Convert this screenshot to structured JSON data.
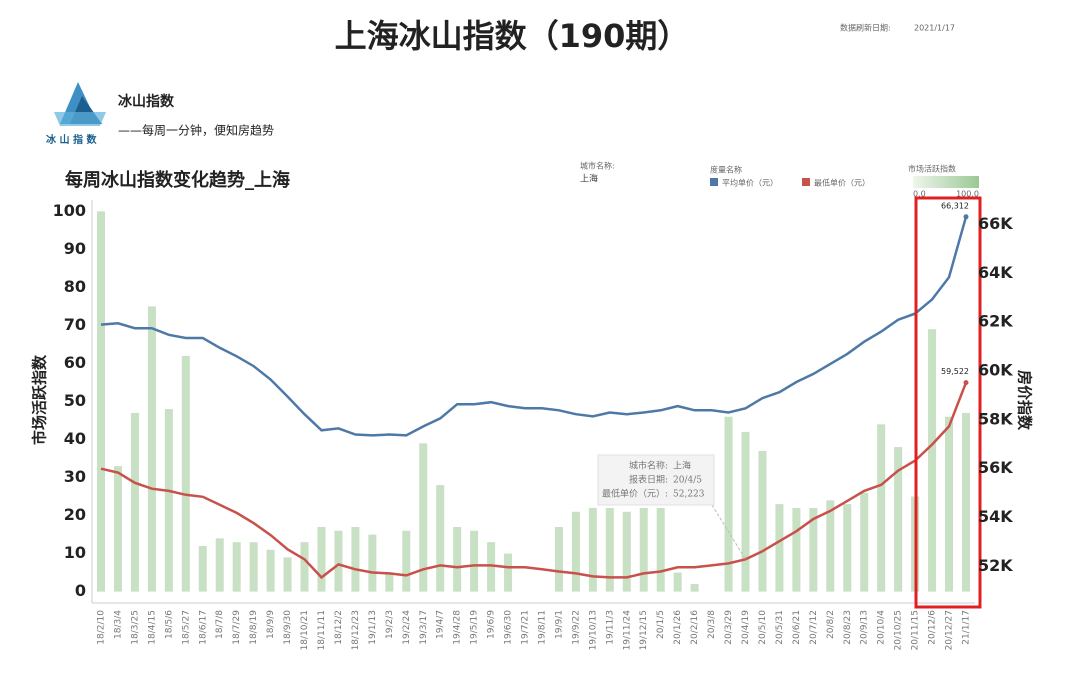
{
  "header": {
    "title": "上海冰山指数（190期）",
    "refresh_label": "数据刷新日期:",
    "refresh_date": "2021/1/17"
  },
  "brand": {
    "name": "冰山指数",
    "slogan": "——每周一分钟，便知房趋势",
    "logo_text": "冰 山 指 数"
  },
  "chart_data": {
    "type": "bar",
    "title": "每周冰山指数变化趋势_上海",
    "filter_label": "城市名称:",
    "filter_value": "上海",
    "measure_label": "度量名称",
    "color_scale": [
      {
        "value": 0,
        "label": "0.0"
      },
      {
        "value": 100,
        "label": "100.0"
      }
    ],
    "ylabel": "市场活跃指数",
    "y2label": "房价指数",
    "categories": [
      "18/2/10",
      "18/3/4",
      "18/3/25",
      "18/4/15",
      "18/5/6",
      "18/5/27",
      "18/6/17",
      "18/7/8",
      "18/7/29",
      "18/8/19",
      "18/9/9",
      "18/9/30",
      "18/10/21",
      "18/11/11",
      "18/12/2",
      "18/12/23",
      "19/1/13",
      "19/2/3",
      "19/2/24",
      "19/3/17",
      "19/4/7",
      "19/4/28",
      "19/5/19",
      "19/6/9",
      "19/6/30",
      "19/7/21",
      "19/8/11",
      "19/9/1",
      "19/9/22",
      "19/10/13",
      "19/11/3",
      "19/11/24",
      "19/12/15",
      "20/1/5",
      "20/1/26",
      "20/2/16",
      "20/3/8",
      "20/3/29",
      "20/4/19",
      "20/5/10",
      "20/5/31",
      "20/6/21",
      "20/7/12",
      "20/8/2",
      "20/8/23",
      "20/9/13",
      "20/10/4",
      "20/10/25",
      "20/11/15",
      "20/12/6",
      "20/12/27",
      "21/1/17"
    ],
    "ylim": [
      -3,
      103
    ],
    "yticks": [
      0,
      10,
      20,
      30,
      40,
      50,
      60,
      70,
      80,
      90,
      100
    ],
    "y2lim": [
      50500,
      67000
    ],
    "y2ticks": [
      {
        "value": 52000,
        "label": "52K"
      },
      {
        "value": 54000,
        "label": "54K"
      },
      {
        "value": 56000,
        "label": "56K"
      },
      {
        "value": 58000,
        "label": "58K"
      },
      {
        "value": 60000,
        "label": "60K"
      },
      {
        "value": 62000,
        "label": "62K"
      },
      {
        "value": 64000,
        "label": "64K"
      },
      {
        "value": 66000,
        "label": "66K"
      }
    ],
    "grid": false,
    "series": [
      {
        "name": "市场活跃指数",
        "type": "bar",
        "color": "#c8e0c3",
        "values": [
          100,
          33,
          47,
          75,
          48,
          62,
          12,
          14,
          13,
          13,
          11,
          9,
          13,
          17,
          16,
          17,
          15,
          5,
          16,
          39,
          28,
          17,
          16,
          13,
          10,
          0,
          0,
          17,
          21,
          22,
          22,
          21,
          22,
          22,
          5,
          2,
          0,
          46,
          42,
          37,
          23,
          22,
          22,
          24,
          23,
          26,
          44,
          38,
          25,
          69,
          46,
          47
        ]
      },
      {
        "name": "平均单价（元）",
        "type": "line",
        "axis": "y2",
        "color": "#4e79a7",
        "values": [
          61900,
          61950,
          61750,
          61750,
          61480,
          61350,
          61350,
          60950,
          60600,
          60200,
          59650,
          58950,
          58230,
          57570,
          57650,
          57400,
          57360,
          57400,
          57360,
          57730,
          58060,
          58640,
          58640,
          58720,
          58560,
          58470,
          58470,
          58390,
          58230,
          58140,
          58300,
          58230,
          58300,
          58390,
          58560,
          58390,
          58390,
          58300,
          58470,
          58890,
          59130,
          59550,
          59880,
          60290,
          60700,
          61200,
          61610,
          62100,
          62350,
          62930,
          63840,
          66312
        ],
        "value_labels": [
          null,
          null,
          null,
          null,
          null,
          null,
          null,
          null,
          null,
          null,
          null,
          null,
          null,
          null,
          null,
          null,
          null,
          null,
          null,
          null,
          null,
          null,
          null,
          null,
          null,
          null,
          null,
          null,
          null,
          null,
          null,
          null,
          null,
          null,
          null,
          null,
          null,
          null,
          null,
          null,
          null,
          null,
          null,
          null,
          null,
          null,
          null,
          null,
          null,
          null,
          null,
          "66,312"
        ]
      },
      {
        "name": "最低单价（元）",
        "type": "line",
        "axis": "y2",
        "color": "#c9514b",
        "values": [
          56000,
          55840,
          55420,
          55180,
          55090,
          54930,
          54850,
          54520,
          54190,
          53770,
          53280,
          52700,
          52290,
          51550,
          52080,
          51880,
          51750,
          51710,
          51630,
          51880,
          52040,
          51960,
          52040,
          52040,
          51960,
          51960,
          51880,
          51790,
          51710,
          51590,
          51550,
          51550,
          51710,
          51790,
          51960,
          51960,
          52040,
          52120,
          52290,
          52620,
          53030,
          53440,
          53940,
          54270,
          54680,
          55090,
          55340,
          55920,
          56330,
          56990,
          57730,
          59522
        ],
        "value_labels": [
          null,
          null,
          null,
          null,
          null,
          null,
          null,
          null,
          null,
          null,
          null,
          null,
          null,
          null,
          null,
          null,
          null,
          null,
          null,
          null,
          null,
          null,
          null,
          null,
          null,
          null,
          null,
          null,
          null,
          null,
          null,
          null,
          null,
          null,
          null,
          null,
          null,
          null,
          null,
          null,
          null,
          null,
          null,
          null,
          null,
          null,
          null,
          null,
          null,
          null,
          null,
          "59,522"
        ]
      }
    ],
    "tooltip": [
      {
        "label": "城市名称:",
        "value": "上海"
      },
      {
        "label": "报表日期:",
        "value": "20/4/5"
      },
      {
        "label": "最低单价（元）:",
        "value": "52,223"
      }
    ]
  }
}
